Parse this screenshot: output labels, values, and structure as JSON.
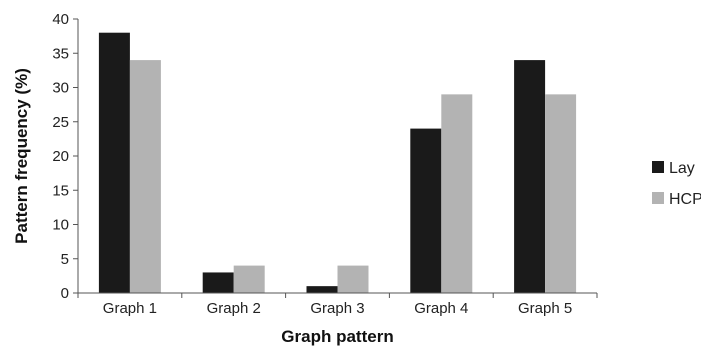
{
  "chart_data": {
    "type": "bar",
    "title": "",
    "xlabel": "Graph pattern",
    "ylabel": "Pattern frequency (%)",
    "ylim": [
      0,
      40
    ],
    "yticks": [
      0,
      5,
      10,
      15,
      20,
      25,
      30,
      35,
      40
    ],
    "categories": [
      "Graph 1",
      "Graph 2",
      "Graph 3",
      "Graph 4",
      "Graph 5"
    ],
    "series": [
      {
        "name": "Lay",
        "values": [
          38,
          3,
          1,
          24,
          34
        ],
        "color": "#1a1a1a"
      },
      {
        "name": "HCP",
        "values": [
          34,
          4,
          4,
          29,
          29
        ],
        "color": "#b3b3b3"
      }
    ],
    "grid": false,
    "legend": "right"
  }
}
